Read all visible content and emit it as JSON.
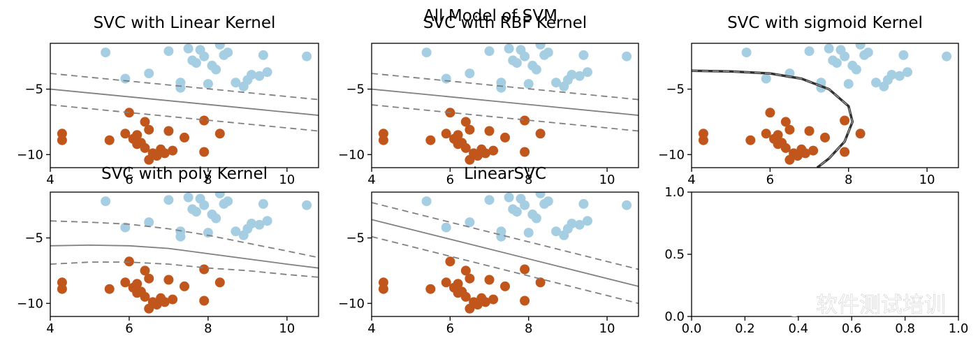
{
  "figure": {
    "suptitle": "All Model of SVM",
    "watermark_text": "软件测试培训",
    "watermark_icon": "wechat-icon"
  },
  "colors": {
    "class_blue": "#a6cee3",
    "class_orange": "#c0561c",
    "boundary": "#808080",
    "sigmoid_boundary": "#303030",
    "watermark": "#ffffff"
  },
  "chart_data": [
    {
      "type": "scatter",
      "title": "SVC with Linear Kernel",
      "xlim": [
        4,
        10.8
      ],
      "ylim": [
        -11,
        -1.5
      ],
      "xticks": [
        4,
        6,
        8,
        10
      ],
      "yticks": [
        -5,
        -10
      ],
      "series": [
        {
          "class": 0,
          "color": "#a6cee3",
          "x": [
            5.4,
            5.9,
            6.5,
            7.0,
            7.3,
            7.5,
            7.6,
            7.8,
            7.9,
            8.0,
            8.1,
            8.2,
            8.3,
            8.4,
            8.5,
            8.7,
            8.9,
            9.0,
            9.1,
            9.3,
            9.4,
            9.5,
            10.5,
            7.3,
            7.7
          ],
          "y": [
            -2.2,
            -4.2,
            -3.8,
            -2.1,
            -4.5,
            -1.9,
            -2.8,
            -2.0,
            -2.5,
            -4.6,
            -3.2,
            -3.5,
            -1.6,
            -2.4,
            -2.2,
            -4.5,
            -4.8,
            -4.3,
            -3.9,
            -4.0,
            -2.4,
            -3.7,
            -2.5,
            -4.9,
            -3.0
          ]
        },
        {
          "class": 1,
          "color": "#c0561c",
          "x": [
            4.3,
            4.3,
            5.5,
            5.9,
            6.0,
            6.1,
            6.2,
            6.3,
            6.4,
            6.4,
            6.5,
            6.5,
            6.6,
            6.7,
            6.8,
            6.9,
            7.0,
            7.1,
            7.4,
            7.9,
            7.9,
            8.3,
            6.2
          ],
          "y": [
            -8.4,
            -8.9,
            -8.9,
            -8.4,
            -6.8,
            -8.8,
            -8.5,
            -9.1,
            -7.5,
            -9.5,
            -10.4,
            -8.1,
            -9.9,
            -10.1,
            -9.6,
            -9.9,
            -8.2,
            -9.7,
            -8.7,
            -7.4,
            -9.8,
            -8.4,
            -9.2
          ]
        }
      ],
      "decision_boundary": {
        "kind": "linear",
        "from": [
          4,
          -5.0
        ],
        "to": [
          10.8,
          -7.0
        ],
        "margin": 1.2
      }
    },
    {
      "type": "scatter",
      "title": "SVC with RBF Kernel",
      "xlim": [
        4,
        10.8
      ],
      "ylim": [
        -11,
        -1.5
      ],
      "xticks": [
        4,
        6,
        8,
        10
      ],
      "yticks": [
        -5,
        -10
      ],
      "series": [
        {
          "class": 0,
          "color": "#a6cee3",
          "x": [
            5.4,
            5.9,
            6.5,
            7.0,
            7.3,
            7.5,
            7.6,
            7.8,
            7.9,
            8.0,
            8.1,
            8.2,
            8.3,
            8.4,
            8.5,
            8.7,
            8.9,
            9.0,
            9.1,
            9.3,
            9.4,
            9.5,
            10.5,
            7.3,
            7.7
          ],
          "y": [
            -2.2,
            -4.2,
            -3.8,
            -2.1,
            -4.5,
            -1.9,
            -2.8,
            -2.0,
            -2.5,
            -4.6,
            -3.2,
            -3.5,
            -1.6,
            -2.4,
            -2.2,
            -4.5,
            -4.8,
            -4.3,
            -3.9,
            -4.0,
            -2.4,
            -3.7,
            -2.5,
            -4.9,
            -3.0
          ]
        },
        {
          "class": 1,
          "color": "#c0561c",
          "x": [
            4.3,
            4.3,
            5.5,
            5.9,
            6.0,
            6.1,
            6.2,
            6.3,
            6.4,
            6.4,
            6.5,
            6.5,
            6.6,
            6.7,
            6.8,
            6.9,
            7.0,
            7.1,
            7.4,
            7.9,
            7.9,
            8.3,
            6.2
          ],
          "y": [
            -8.4,
            -8.9,
            -8.9,
            -8.4,
            -6.8,
            -8.8,
            -8.5,
            -9.1,
            -7.5,
            -9.5,
            -10.4,
            -8.1,
            -9.9,
            -10.1,
            -9.6,
            -9.9,
            -8.2,
            -9.7,
            -8.7,
            -7.4,
            -9.8,
            -8.4,
            -9.2
          ]
        }
      ],
      "decision_boundary": {
        "kind": "linear",
        "from": [
          4,
          -5.0
        ],
        "to": [
          10.8,
          -7.0
        ],
        "margin": 1.2
      }
    },
    {
      "type": "scatter",
      "title": "SVC with sigmoid Kernel",
      "xlim": [
        4,
        10.8
      ],
      "ylim": [
        -11,
        -1.5
      ],
      "xticks": [
        4,
        6,
        8,
        10
      ],
      "yticks": [
        -5,
        -10
      ],
      "series": [
        {
          "class": 0,
          "color": "#a6cee3",
          "x": [
            5.4,
            5.9,
            6.5,
            7.0,
            7.3,
            7.5,
            7.6,
            7.8,
            7.9,
            8.0,
            8.1,
            8.2,
            8.3,
            8.4,
            8.5,
            8.7,
            8.9,
            9.0,
            9.1,
            9.3,
            9.4,
            9.5,
            10.5,
            7.3,
            7.7
          ],
          "y": [
            -2.2,
            -4.2,
            -3.8,
            -2.1,
            -4.5,
            -1.9,
            -2.8,
            -2.0,
            -2.5,
            -4.6,
            -3.2,
            -3.5,
            -1.6,
            -2.4,
            -2.2,
            -4.5,
            -4.8,
            -4.3,
            -3.9,
            -4.0,
            -2.4,
            -3.7,
            -2.5,
            -4.9,
            -3.0
          ]
        },
        {
          "class": 1,
          "color": "#c0561c",
          "x": [
            4.3,
            4.3,
            5.5,
            5.9,
            6.0,
            6.1,
            6.2,
            6.3,
            6.4,
            6.4,
            6.5,
            6.5,
            6.6,
            6.7,
            6.8,
            6.9,
            7.0,
            7.1,
            7.4,
            7.9,
            7.9,
            8.3,
            6.2
          ],
          "y": [
            -8.4,
            -8.9,
            -8.9,
            -8.4,
            -6.8,
            -8.8,
            -8.5,
            -9.1,
            -7.5,
            -9.5,
            -10.4,
            -8.1,
            -9.9,
            -10.1,
            -9.6,
            -9.9,
            -8.2,
            -9.7,
            -8.7,
            -7.4,
            -9.8,
            -8.4,
            -9.2
          ]
        }
      ],
      "decision_boundary": {
        "kind": "curve",
        "points": [
          [
            4.0,
            -3.6
          ],
          [
            5.0,
            -3.65
          ],
          [
            6.0,
            -3.8
          ],
          [
            6.8,
            -4.2
          ],
          [
            7.5,
            -5.0
          ],
          [
            8.0,
            -6.3
          ],
          [
            8.1,
            -7.5
          ],
          [
            7.9,
            -9.0
          ],
          [
            7.5,
            -10.3
          ],
          [
            7.2,
            -11.0
          ]
        ]
      }
    },
    {
      "type": "scatter",
      "title": "SVC with poly Kernel",
      "xlim": [
        4,
        10.8
      ],
      "ylim": [
        -11,
        -1.5
      ],
      "xticks": [
        4,
        6,
        8,
        10
      ],
      "yticks": [
        -5,
        -10
      ],
      "series": [
        {
          "class": 0,
          "color": "#a6cee3",
          "x": [
            5.4,
            5.9,
            6.5,
            7.0,
            7.3,
            7.5,
            7.6,
            7.8,
            7.9,
            8.0,
            8.1,
            8.2,
            8.3,
            8.4,
            8.5,
            8.7,
            8.9,
            9.0,
            9.1,
            9.3,
            9.4,
            9.5,
            10.5,
            7.3,
            7.7
          ],
          "y": [
            -2.2,
            -4.2,
            -3.8,
            -2.1,
            -4.5,
            -1.9,
            -2.8,
            -2.0,
            -2.5,
            -4.6,
            -3.2,
            -3.5,
            -1.6,
            -2.4,
            -2.2,
            -4.5,
            -4.8,
            -4.3,
            -3.9,
            -4.0,
            -2.4,
            -3.7,
            -2.5,
            -4.9,
            -3.0
          ]
        },
        {
          "class": 1,
          "color": "#c0561c",
          "x": [
            4.3,
            4.3,
            5.5,
            5.9,
            6.0,
            6.1,
            6.2,
            6.3,
            6.4,
            6.4,
            6.5,
            6.5,
            6.6,
            6.7,
            6.8,
            6.9,
            7.0,
            7.1,
            7.4,
            7.9,
            7.9,
            8.3,
            6.2
          ],
          "y": [
            -8.4,
            -8.9,
            -8.9,
            -8.4,
            -6.8,
            -8.8,
            -8.5,
            -9.1,
            -7.5,
            -9.5,
            -10.4,
            -8.1,
            -9.9,
            -10.1,
            -9.6,
            -9.9,
            -8.2,
            -9.7,
            -8.7,
            -7.4,
            -9.8,
            -8.4,
            -9.2
          ]
        }
      ],
      "decision_boundary": {
        "kind": "poly",
        "center": [
          [
            4.0,
            -5.6
          ],
          [
            5.0,
            -5.55
          ],
          [
            6.0,
            -5.6
          ],
          [
            7.0,
            -5.8
          ],
          [
            8.0,
            -6.2
          ],
          [
            9.0,
            -6.6
          ],
          [
            10.0,
            -7.0
          ],
          [
            10.8,
            -7.3
          ]
        ],
        "upper": [
          [
            4.0,
            -3.7
          ],
          [
            5.0,
            -3.8
          ],
          [
            6.0,
            -3.95
          ],
          [
            7.0,
            -4.3
          ],
          [
            8.0,
            -4.8
          ],
          [
            9.0,
            -5.4
          ],
          [
            10.0,
            -6.0
          ],
          [
            10.8,
            -6.5
          ]
        ],
        "lower": [
          [
            4.0,
            -7.0
          ],
          [
            5.0,
            -6.85
          ],
          [
            6.0,
            -6.85
          ],
          [
            7.0,
            -7.0
          ],
          [
            8.0,
            -7.3
          ],
          [
            9.0,
            -7.5
          ],
          [
            10.0,
            -7.8
          ],
          [
            10.8,
            -8.0
          ]
        ]
      }
    },
    {
      "type": "scatter",
      "title": "LinearSVC",
      "xlim": [
        4,
        10.8
      ],
      "ylim": [
        -11,
        -1.5
      ],
      "xticks": [
        4,
        6,
        8,
        10
      ],
      "yticks": [
        -5,
        -10
      ],
      "series": [
        {
          "class": 0,
          "color": "#a6cee3",
          "x": [
            5.4,
            5.9,
            6.5,
            7.0,
            7.3,
            7.5,
            7.6,
            7.8,
            7.9,
            8.0,
            8.1,
            8.2,
            8.3,
            8.4,
            8.5,
            8.7,
            8.9,
            9.0,
            9.1,
            9.3,
            9.4,
            9.5,
            10.5,
            7.3,
            7.7
          ],
          "y": [
            -2.2,
            -4.2,
            -3.8,
            -2.1,
            -4.5,
            -1.9,
            -2.8,
            -2.0,
            -2.5,
            -4.6,
            -3.2,
            -3.5,
            -1.6,
            -2.4,
            -2.2,
            -4.5,
            -4.8,
            -4.3,
            -3.9,
            -4.0,
            -2.4,
            -3.7,
            -2.5,
            -4.9,
            -3.0
          ]
        },
        {
          "class": 1,
          "color": "#c0561c",
          "x": [
            4.3,
            4.3,
            5.5,
            5.9,
            6.0,
            6.1,
            6.2,
            6.3,
            6.4,
            6.4,
            6.5,
            6.5,
            6.6,
            6.7,
            6.8,
            6.9,
            7.0,
            7.1,
            7.4,
            7.9,
            7.9,
            8.3,
            6.2
          ],
          "y": [
            -8.4,
            -8.9,
            -8.9,
            -8.4,
            -6.8,
            -8.8,
            -8.5,
            -9.1,
            -7.5,
            -9.5,
            -10.4,
            -8.1,
            -9.9,
            -10.1,
            -9.6,
            -9.9,
            -8.2,
            -9.7,
            -8.7,
            -7.4,
            -9.8,
            -8.4,
            -9.2
          ]
        }
      ],
      "decision_boundary": {
        "kind": "linear",
        "from": [
          4,
          -3.6
        ],
        "to": [
          10.8,
          -8.7
        ],
        "margin": 1.3
      }
    },
    {
      "type": "scatter",
      "title": "",
      "xlim": [
        0,
        1
      ],
      "ylim": [
        0,
        1
      ],
      "xticks": [
        0.0,
        0.2,
        0.4,
        0.6,
        0.8,
        1.0
      ],
      "xticklabels": [
        "0.0",
        "0.2",
        "0.4",
        "0.6",
        "0.8",
        "1.0"
      ],
      "yticks": [
        1.0,
        0.5,
        0.0
      ],
      "yticklabels": [
        "1.0",
        "0.5",
        "0.0"
      ],
      "series": []
    }
  ]
}
